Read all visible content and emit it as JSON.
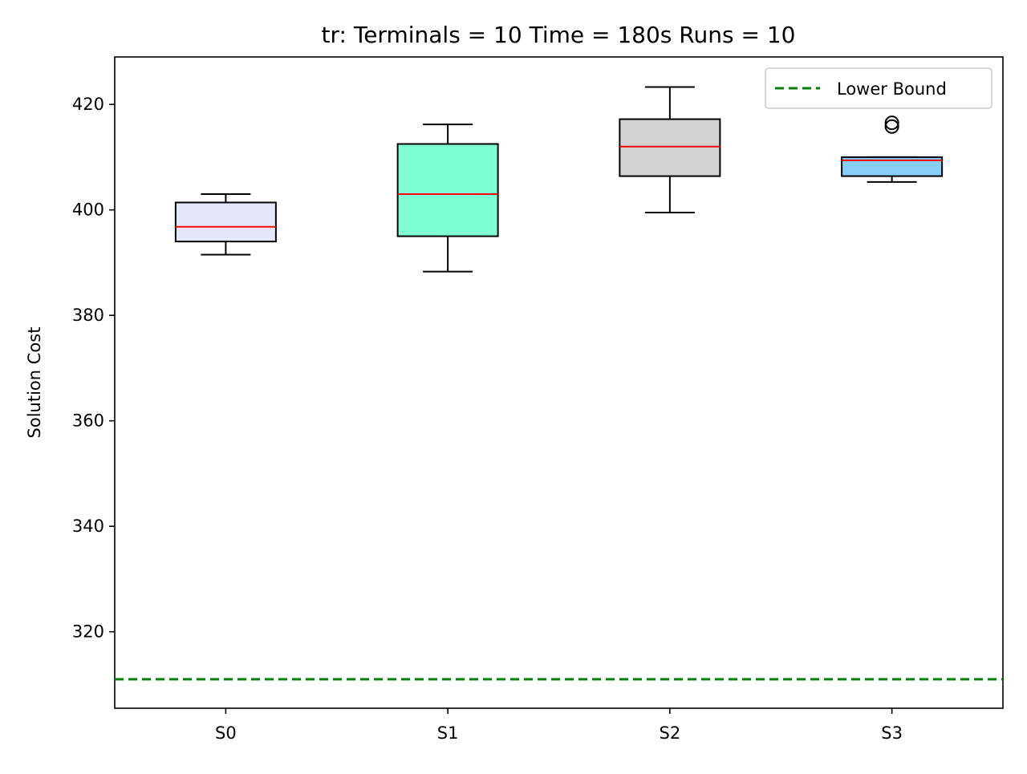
{
  "chart_data": {
    "type": "box",
    "title": "tr:  Terminals = 10  Time = 180s  Runs = 10",
    "xlabel": "",
    "ylabel": "Solution Cost",
    "ylim": [
      305.5,
      429.0
    ],
    "yticks": [
      320,
      340,
      360,
      380,
      400,
      420
    ],
    "categories": [
      "S0",
      "S1",
      "S2",
      "S3"
    ],
    "boxes": [
      {
        "label": "S0",
        "whisker_low": 391.5,
        "q1": 394.0,
        "median": 396.8,
        "q3": 401.4,
        "whisker_high": 403.0,
        "outliers": [],
        "color": "#e6e6fa"
      },
      {
        "label": "S1",
        "whisker_low": 388.3,
        "q1": 395.0,
        "median": 403.0,
        "q3": 412.5,
        "whisker_high": 416.2,
        "outliers": [],
        "color": "#7fffd4"
      },
      {
        "label": "S2",
        "whisker_low": 399.5,
        "q1": 406.4,
        "median": 412.0,
        "q3": 417.2,
        "whisker_high": 423.3,
        "outliers": [],
        "color": "#d3d3d3"
      },
      {
        "label": "S3",
        "whisker_low": 405.3,
        "q1": 406.4,
        "median": 409.4,
        "q3": 410.0,
        "whisker_high": 410.0,
        "outliers": [
          415.8,
          416.5
        ],
        "color": "#87cefa"
      }
    ],
    "median_color": "#ff0000",
    "lower_bound": {
      "label": "Lower Bound",
      "value": 311.0,
      "color": "#008000",
      "style": "dashed"
    },
    "legend_position": "top-right",
    "grid": false
  }
}
